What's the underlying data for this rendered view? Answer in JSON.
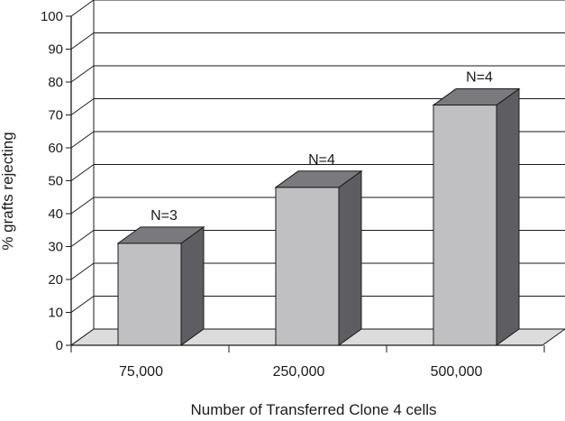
{
  "chart_data": {
    "type": "bar",
    "categories": [
      "75,000",
      "250,000",
      "500,000"
    ],
    "values": [
      31,
      48,
      73
    ],
    "annotations": [
      "N=3",
      "N=4",
      "N=4"
    ],
    "xlabel": "Number of Transferred Clone 4 cells",
    "ylabel": "% grafts rejecting",
    "ylim": [
      0,
      100
    ],
    "yticks": [
      0,
      10,
      20,
      30,
      40,
      50,
      60,
      70,
      80,
      90,
      100
    ],
    "grid": true,
    "style": "3d",
    "colors": {
      "bar_front": "#c0c0c2",
      "bar_side": "#5e5e62",
      "bar_top": "#7a7a7e",
      "floor": "#dcdcdc",
      "grid": "#1a1a1a"
    }
  }
}
